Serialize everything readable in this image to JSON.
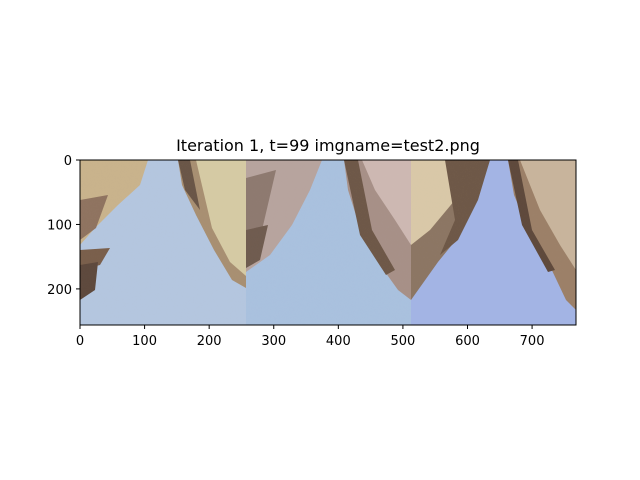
{
  "figure": {
    "title": "Iteration 1, t=99 imgname=test2.png"
  },
  "axes": {
    "xlim": [
      0,
      768
    ],
    "ylim": [
      256,
      0
    ],
    "xticks": [
      0,
      100,
      200,
      300,
      400,
      500,
      600,
      700
    ],
    "yticks": [
      0,
      100,
      200
    ],
    "xtick_labels": [
      "0",
      "100",
      "200",
      "300",
      "400",
      "500",
      "600",
      "700"
    ],
    "ytick_labels": [
      "0",
      "100",
      "200"
    ]
  },
  "image": {
    "description_panels": 3,
    "colors": {
      "sky": "#a6bfdd",
      "sky_light": "#c9d6e6",
      "rock_dark": "#6b5646",
      "rock_mid": "#8f7360",
      "rock_light": "#b49a7c",
      "cream": "#d8cfae",
      "pink_rock": "#b49d95"
    }
  }
}
